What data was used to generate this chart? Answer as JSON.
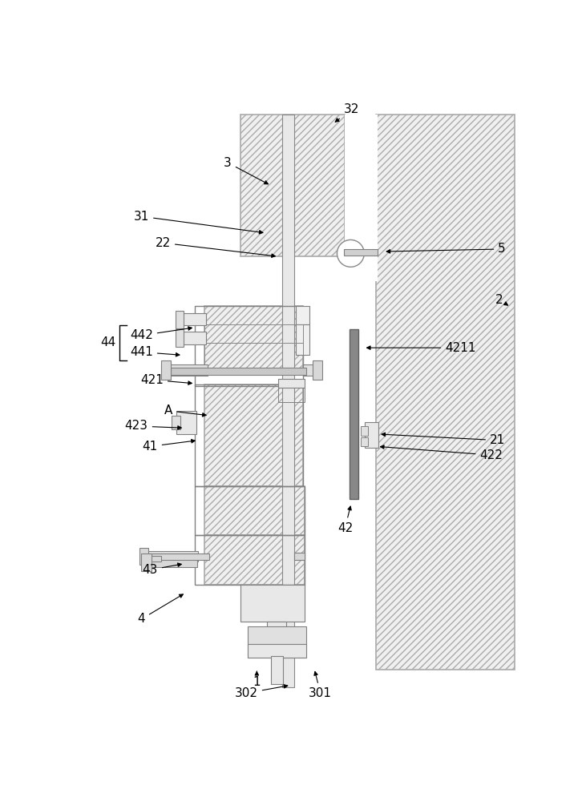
{
  "bg": "#ffffff",
  "lc": "#000000",
  "hatch_ec": "#aaaaaa",
  "hatch_fc": "#f0f0f0",
  "hatch": "////",
  "gray_bar": "#888888",
  "white": "#ffffff",
  "light": "#e8e8e8",
  "fig_w": 7.31,
  "fig_h": 10.0,
  "dpi": 100,
  "annotations": [
    [
      "3",
      248,
      108,
      318,
      145
    ],
    [
      "32",
      448,
      22,
      418,
      45
    ],
    [
      "31",
      108,
      195,
      310,
      222
    ],
    [
      "22",
      143,
      238,
      330,
      260
    ],
    [
      "5",
      692,
      248,
      500,
      252
    ],
    [
      "2",
      688,
      330,
      706,
      342
    ],
    [
      "4211",
      625,
      408,
      468,
      408
    ],
    [
      "442",
      108,
      388,
      195,
      375
    ],
    [
      "441",
      108,
      415,
      175,
      420
    ],
    [
      "421",
      125,
      460,
      195,
      466
    ],
    [
      "A",
      152,
      510,
      218,
      518
    ],
    [
      "423",
      100,
      535,
      178,
      538
    ],
    [
      "41",
      122,
      568,
      200,
      558
    ],
    [
      "21",
      685,
      558,
      492,
      548
    ],
    [
      "422",
      675,
      582,
      490,
      568
    ],
    [
      "42",
      438,
      700,
      448,
      660
    ],
    [
      "43",
      122,
      768,
      178,
      758
    ],
    [
      "4",
      108,
      848,
      180,
      805
    ],
    [
      "301",
      398,
      968,
      388,
      928
    ],
    [
      "302",
      278,
      968,
      350,
      955
    ],
    [
      "1",
      295,
      950,
      295,
      928
    ]
  ]
}
